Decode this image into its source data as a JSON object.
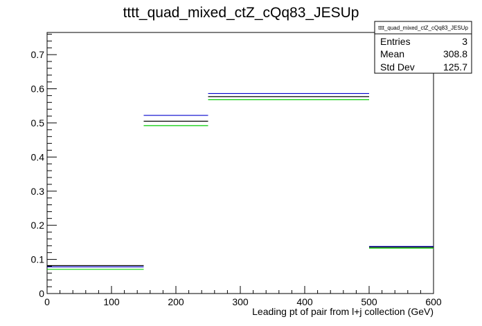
{
  "chart_data": {
    "type": "step",
    "title": "tttt_quad_mixed_ctZ_cQq83_JESUp",
    "xlabel": "Leading pt of pair from l+j collection (GeV)",
    "ylabel": "",
    "xlim": [
      0,
      600
    ],
    "ylim": [
      0,
      0.765
    ],
    "x_ticks": [
      0,
      100,
      200,
      300,
      400,
      500,
      600
    ],
    "y_ticks": [
      0,
      0.1,
      0.2,
      0.3,
      0.4,
      0.5,
      0.6,
      0.7
    ],
    "x_tick_labels": [
      "0",
      "100",
      "200",
      "300",
      "400",
      "500",
      "600"
    ],
    "y_tick_labels": [
      "0",
      "0.1",
      "0.2",
      "0.3",
      "0.4",
      "0.5",
      "0.6",
      "0.7"
    ],
    "bin_edges": [
      0,
      150,
      250,
      500,
      600
    ],
    "series": [
      {
        "color": "#0000cc",
        "values": [
          0.078,
          0.522,
          0.586,
          0.138
        ]
      },
      {
        "color": "#000000",
        "values": [
          0.082,
          0.505,
          0.577,
          0.136
        ]
      },
      {
        "color": "#00cc00",
        "values": [
          0.071,
          0.492,
          0.568,
          0.133
        ]
      }
    ],
    "grid": false,
    "stats_box": {
      "title": "tttt_quad_mixed_ctZ_cQq83_JESUp",
      "rows": [
        {
          "label": "Entries",
          "value": "3"
        },
        {
          "label": "Mean",
          "value": "308.8"
        },
        {
          "label": "Std Dev",
          "value": "125.7"
        }
      ]
    }
  }
}
